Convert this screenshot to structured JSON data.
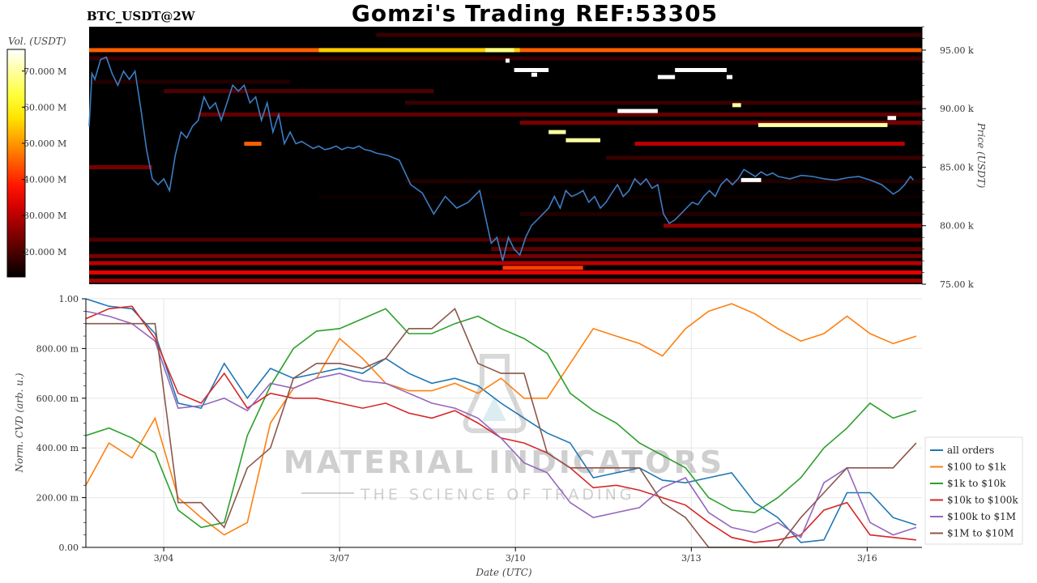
{
  "header": {
    "title": "Gomzi's Trading REF:53305",
    "symbol": "BTC_USDT@2W"
  },
  "watermark": {
    "line1": "MATERIAL INDICATORS",
    "line2": "THE SCIENCE OF TRADING"
  },
  "colors": {
    "price_line": "#3b7dc4",
    "heatmap_bg": "#000000",
    "all_orders": "#1f77b4",
    "s100_1k": "#ff7f0e",
    "s1k_10k": "#2ca02c",
    "s10k_100k": "#d62728",
    "s100k_1m": "#9467bd",
    "s1m_10m": "#8c564b"
  },
  "chart_data": [
    {
      "type": "heatmap",
      "title": "Gomzi's Trading REF:53305",
      "colorbar_label": "Vol. (USDT)",
      "colorbar_ticks": [
        "20.000 M",
        "30.000 M",
        "40.000 M",
        "50.000 M",
        "60.000 M",
        "70.000 M"
      ],
      "colorbar_values": [
        20,
        30,
        40,
        50,
        60,
        70
      ],
      "colorbar_range": [
        13,
        76
      ],
      "ylabel": "Price (USDT)",
      "ylim": [
        75000,
        97000
      ],
      "yticks": [
        75000,
        80000,
        85000,
        90000,
        95000
      ],
      "ytick_labels": [
        "75.00 k",
        "80.00 k",
        "85.00 k",
        "90.00 k",
        "95.00 k"
      ],
      "xlim": [
        0,
        14.5
      ],
      "bands": [
        {
          "price": 95000,
          "t0": 0.0,
          "t1": 14.5,
          "vol": 45
        },
        {
          "price": 95000,
          "t0": 4.0,
          "t1": 7.5,
          "vol": 55
        },
        {
          "price": 95000,
          "t0": 6.9,
          "t1": 7.4,
          "vol": 68
        },
        {
          "price": 94300,
          "t0": 0.0,
          "t1": 14.5,
          "vol": 18
        },
        {
          "price": 96300,
          "t0": 5.0,
          "t1": 14.5,
          "vol": 18
        },
        {
          "price": 92300,
          "t0": 0.0,
          "t1": 3.5,
          "vol": 16
        },
        {
          "price": 91500,
          "t0": 1.3,
          "t1": 6.0,
          "vol": 20
        },
        {
          "price": 90500,
          "t0": 5.5,
          "t1": 14.5,
          "vol": 18
        },
        {
          "price": 89500,
          "t0": 1.9,
          "t1": 14.5,
          "vol": 22
        },
        {
          "price": 88800,
          "t0": 7.5,
          "t1": 14.5,
          "vol": 24
        },
        {
          "price": 87000,
          "t0": 2.7,
          "t1": 3.0,
          "vol": 45
        },
        {
          "price": 87000,
          "t0": 9.5,
          "t1": 14.2,
          "vol": 30
        },
        {
          "price": 85000,
          "t0": 0.0,
          "t1": 1.1,
          "vol": 24
        },
        {
          "price": 85800,
          "t0": 9.0,
          "t1": 14.5,
          "vol": 18
        },
        {
          "price": 83800,
          "t0": 5.5,
          "t1": 14.5,
          "vol": 16
        },
        {
          "price": 82500,
          "t0": 4.0,
          "t1": 14.5,
          "vol": 14
        },
        {
          "price": 81000,
          "t0": 7.5,
          "t1": 14.5,
          "vol": 16
        },
        {
          "price": 80000,
          "t0": 10.0,
          "t1": 14.5,
          "vol": 26
        },
        {
          "price": 78800,
          "t0": 0.0,
          "t1": 14.5,
          "vol": 20
        },
        {
          "price": 78000,
          "t0": 7.0,
          "t1": 14.5,
          "vol": 22
        },
        {
          "price": 77400,
          "t0": 0.0,
          "t1": 14.5,
          "vol": 24
        },
        {
          "price": 76800,
          "t0": 0.0,
          "t1": 14.5,
          "vol": 30
        },
        {
          "price": 76000,
          "t0": 0.0,
          "t1": 14.5,
          "vol": 34
        },
        {
          "price": 75300,
          "t0": 0.0,
          "t1": 14.5,
          "vol": 28
        },
        {
          "price": 76400,
          "t0": 7.2,
          "t1": 8.6,
          "vol": 42
        },
        {
          "price": 93300,
          "t0": 7.4,
          "t1": 8.0,
          "vol": 76
        },
        {
          "price": 89800,
          "t0": 9.2,
          "t1": 9.9,
          "vol": 76
        },
        {
          "price": 92700,
          "t0": 9.9,
          "t1": 10.2,
          "vol": 76
        },
        {
          "price": 93300,
          "t0": 10.2,
          "t1": 11.1,
          "vol": 76
        },
        {
          "price": 92700,
          "t0": 11.1,
          "t1": 11.2,
          "vol": 76
        },
        {
          "price": 88000,
          "t0": 8.0,
          "t1": 8.3,
          "vol": 70
        },
        {
          "price": 87300,
          "t0": 8.3,
          "t1": 8.9,
          "vol": 70
        },
        {
          "price": 90300,
          "t0": 11.2,
          "t1": 11.35,
          "vol": 70
        },
        {
          "price": 88600,
          "t0": 11.65,
          "t1": 13.9,
          "vol": 70
        },
        {
          "price": 89200,
          "t0": 13.9,
          "t1": 14.05,
          "vol": 76
        },
        {
          "price": 83900,
          "t0": 11.35,
          "t1": 11.7,
          "vol": 76
        },
        {
          "price": 94100,
          "t0": 7.25,
          "t1": 7.32,
          "vol": 76
        },
        {
          "price": 92900,
          "t0": 7.7,
          "t1": 7.8,
          "vol": 76
        }
      ],
      "price_series": {
        "name": "Price",
        "t": [
          0.0,
          0.05,
          0.1,
          0.2,
          0.3,
          0.4,
          0.5,
          0.6,
          0.7,
          0.8,
          0.9,
          1.0,
          1.1,
          1.2,
          1.3,
          1.4,
          1.5,
          1.6,
          1.7,
          1.8,
          1.9,
          2.0,
          2.1,
          2.2,
          2.3,
          2.4,
          2.5,
          2.6,
          2.7,
          2.8,
          2.9,
          3.0,
          3.1,
          3.2,
          3.3,
          3.4,
          3.5,
          3.6,
          3.7,
          3.8,
          3.9,
          4.0,
          4.1,
          4.2,
          4.3,
          4.4,
          4.5,
          4.6,
          4.7,
          4.8,
          4.9,
          5.0,
          5.2,
          5.4,
          5.6,
          5.8,
          6.0,
          6.2,
          6.4,
          6.6,
          6.8,
          7.0,
          7.1,
          7.2,
          7.3,
          7.4,
          7.5,
          7.6,
          7.7,
          7.8,
          7.9,
          8.0,
          8.1,
          8.2,
          8.3,
          8.4,
          8.5,
          8.6,
          8.7,
          8.8,
          8.9,
          9.0,
          9.1,
          9.2,
          9.3,
          9.4,
          9.5,
          9.6,
          9.7,
          9.8,
          9.9,
          10.0,
          10.1,
          10.2,
          10.3,
          10.4,
          10.5,
          10.6,
          10.7,
          10.8,
          10.9,
          11.0,
          11.1,
          11.2,
          11.3,
          11.4,
          11.5,
          11.6,
          11.7,
          11.8,
          11.9,
          12.0,
          12.2,
          12.4,
          12.6,
          12.8,
          13.0,
          13.2,
          13.4,
          13.6,
          13.8,
          14.0,
          14.1,
          14.2,
          14.3,
          14.35
        ],
        "price": [
          88500,
          93000,
          92500,
          94200,
          94400,
          93000,
          92000,
          93200,
          92500,
          93200,
          90000,
          86500,
          84000,
          83500,
          84000,
          83000,
          86000,
          88000,
          87500,
          88500,
          89000,
          91000,
          90000,
          90500,
          89000,
          90500,
          92000,
          91500,
          92000,
          90500,
          91000,
          89000,
          90500,
          88000,
          89500,
          87000,
          88000,
          87000,
          87200,
          86900,
          86600,
          86800,
          86500,
          86600,
          86800,
          86500,
          86700,
          86600,
          86800,
          86500,
          86400,
          86200,
          86000,
          85600,
          83500,
          82800,
          81000,
          82500,
          81500,
          82000,
          83000,
          78500,
          79000,
          77000,
          79000,
          78000,
          77500,
          79000,
          80000,
          80500,
          81000,
          81500,
          82500,
          81500,
          83000,
          82500,
          82700,
          83000,
          82000,
          82500,
          81500,
          82000,
          82800,
          83500,
          82500,
          83000,
          84000,
          83500,
          84000,
          83200,
          83500,
          81000,
          80200,
          80500,
          81000,
          81500,
          82000,
          81800,
          82500,
          83000,
          82500,
          83500,
          84000,
          83500,
          84000,
          84800,
          84500,
          84200,
          84600,
          84300,
          84500,
          84200,
          84000,
          84300,
          84200,
          84000,
          83900,
          84100,
          84200,
          83900,
          83500,
          82700,
          83000,
          83500,
          84200,
          83900
        ]
      }
    },
    {
      "type": "line",
      "xlabel": "Date (UTC)",
      "ylabel": "Norm. CVD (arb. u.)",
      "ylim": [
        0,
        1
      ],
      "yticks": [
        0,
        0.2,
        0.4,
        0.6,
        0.8,
        1.0
      ],
      "ytick_labels": [
        "0.00",
        "200.00 m",
        "400.00 m",
        "600.00 m",
        "800.00 m",
        "1.00"
      ],
      "xlim": [
        0,
        14.5
      ],
      "xticks": [
        1.35,
        4.4,
        7.45,
        10.5,
        13.55
      ],
      "xtick_labels": [
        "3/04",
        "3/07",
        "3/10",
        "3/13",
        "3/16"
      ],
      "legend_position": "right",
      "x": [
        0.0,
        0.4,
        0.8,
        1.2,
        1.6,
        2.0,
        2.4,
        2.8,
        3.2,
        3.6,
        4.0,
        4.4,
        4.8,
        5.2,
        5.6,
        6.0,
        6.4,
        6.8,
        7.2,
        7.6,
        8.0,
        8.4,
        8.8,
        9.2,
        9.6,
        10.0,
        10.4,
        10.8,
        11.2,
        11.6,
        12.0,
        12.4,
        12.8,
        13.2,
        13.6,
        14.0,
        14.4
      ],
      "series": [
        {
          "name": "all orders",
          "color": "#1f77b4",
          "values": [
            1.0,
            0.97,
            0.96,
            0.86,
            0.58,
            0.56,
            0.74,
            0.6,
            0.72,
            0.68,
            0.7,
            0.72,
            0.7,
            0.76,
            0.7,
            0.66,
            0.68,
            0.65,
            0.58,
            0.52,
            0.46,
            0.42,
            0.28,
            0.3,
            0.32,
            0.27,
            0.26,
            0.28,
            0.3,
            0.18,
            0.12,
            0.02,
            0.03,
            0.22,
            0.22,
            0.12,
            0.09
          ]
        },
        {
          "name": "$100 to $1k",
          "color": "#ff7f0e",
          "values": [
            0.25,
            0.42,
            0.36,
            0.52,
            0.2,
            0.12,
            0.05,
            0.1,
            0.5,
            0.64,
            0.68,
            0.84,
            0.76,
            0.66,
            0.63,
            0.63,
            0.66,
            0.62,
            0.68,
            0.6,
            0.6,
            0.74,
            0.88,
            0.85,
            0.82,
            0.77,
            0.88,
            0.95,
            0.98,
            0.94,
            0.88,
            0.83,
            0.86,
            0.93,
            0.86,
            0.82,
            0.85
          ]
        },
        {
          "name": "$1k to $10k",
          "color": "#2ca02c",
          "values": [
            0.45,
            0.48,
            0.44,
            0.38,
            0.15,
            0.08,
            0.1,
            0.45,
            0.65,
            0.8,
            0.87,
            0.88,
            0.92,
            0.96,
            0.86,
            0.86,
            0.9,
            0.93,
            0.88,
            0.84,
            0.78,
            0.62,
            0.55,
            0.5,
            0.42,
            0.37,
            0.32,
            0.2,
            0.15,
            0.14,
            0.2,
            0.28,
            0.4,
            0.48,
            0.58,
            0.52,
            0.55
          ]
        },
        {
          "name": "$10k to $100k",
          "color": "#d62728",
          "values": [
            0.92,
            0.96,
            0.97,
            0.84,
            0.62,
            0.58,
            0.7,
            0.56,
            0.62,
            0.6,
            0.6,
            0.58,
            0.56,
            0.58,
            0.54,
            0.52,
            0.55,
            0.5,
            0.44,
            0.42,
            0.38,
            0.32,
            0.24,
            0.25,
            0.23,
            0.2,
            0.17,
            0.1,
            0.04,
            0.02,
            0.03,
            0.05,
            0.15,
            0.18,
            0.05,
            0.04,
            0.03
          ]
        },
        {
          "name": "$100k to $1M",
          "color": "#9467bd",
          "values": [
            0.95,
            0.93,
            0.9,
            0.83,
            0.56,
            0.57,
            0.6,
            0.55,
            0.66,
            0.64,
            0.68,
            0.7,
            0.67,
            0.66,
            0.62,
            0.58,
            0.56,
            0.52,
            0.44,
            0.34,
            0.3,
            0.18,
            0.12,
            0.14,
            0.16,
            0.24,
            0.28,
            0.14,
            0.08,
            0.06,
            0.1,
            0.04,
            0.26,
            0.32,
            0.1,
            0.05,
            0.08
          ]
        },
        {
          "name": "$1M to $10M",
          "color": "#8c564b",
          "values": [
            0.9,
            0.9,
            0.9,
            0.9,
            0.18,
            0.18,
            0.08,
            0.32,
            0.4,
            0.68,
            0.74,
            0.74,
            0.72,
            0.76,
            0.88,
            0.88,
            0.96,
            0.74,
            0.7,
            0.7,
            0.38,
            0.32,
            0.32,
            0.32,
            0.32,
            0.18,
            0.12,
            0.0,
            0.0,
            0.0,
            0.0,
            0.12,
            0.22,
            0.32,
            0.32,
            0.32,
            0.42
          ]
        }
      ]
    }
  ]
}
